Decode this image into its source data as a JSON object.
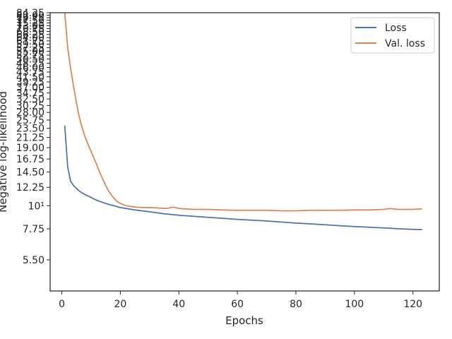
{
  "chart_data": {
    "type": "line",
    "title": "",
    "xlabel": "Epochs",
    "ylabel": "Negative log-likelihood",
    "yscale": "log",
    "xlim": [
      -4,
      129
    ],
    "ylim": [
      3.9,
      84.25
    ],
    "xticks": [
      0,
      20,
      40,
      60,
      80,
      100,
      120
    ],
    "yticks": [
      {
        "value": 5.5,
        "label": "5.50"
      },
      {
        "value": 7.75,
        "label": "7.75"
      },
      {
        "value": 10,
        "label": "10¹"
      },
      {
        "value": 12.25,
        "label": "12.25"
      },
      {
        "value": 14.5,
        "label": "14.50"
      },
      {
        "value": 16.75,
        "label": "16.75"
      },
      {
        "value": 19.0,
        "label": "19.00"
      },
      {
        "value": 21.25,
        "label": "21.25"
      },
      {
        "value": 23.5,
        "label": "23.50"
      },
      {
        "value": 25.75,
        "label": "25.75"
      },
      {
        "value": 28.0,
        "label": "28.00"
      },
      {
        "value": 30.25,
        "label": "30.25"
      },
      {
        "value": 32.5,
        "label": "32.50"
      },
      {
        "value": 34.75,
        "label": "34.75"
      },
      {
        "value": 37.0,
        "label": "37.00"
      },
      {
        "value": 39.25,
        "label": "39.25"
      },
      {
        "value": 41.5,
        "label": "41.50"
      },
      {
        "value": 43.75,
        "label": "43.75"
      },
      {
        "value": 46.0,
        "label": "46.00"
      },
      {
        "value": 48.25,
        "label": "48.25"
      },
      {
        "value": 50.5,
        "label": "50.50"
      },
      {
        "value": 52.75,
        "label": "52.75"
      },
      {
        "value": 55.0,
        "label": "55.00"
      },
      {
        "value": 57.25,
        "label": "57.25"
      },
      {
        "value": 59.5,
        "label": "59.50"
      },
      {
        "value": 61.75,
        "label": "61.75"
      },
      {
        "value": 64.0,
        "label": "64.00"
      },
      {
        "value": 66.25,
        "label": "66.25"
      },
      {
        "value": 68.5,
        "label": "68.50"
      },
      {
        "value": 70.75,
        "label": "70.75"
      },
      {
        "value": 73.0,
        "label": "73.00"
      },
      {
        "value": 75.25,
        "label": "75.25"
      },
      {
        "value": 77.5,
        "label": "77.50"
      },
      {
        "value": 79.75,
        "label": "79.75"
      },
      {
        "value": 82.0,
        "label": "82.00"
      },
      {
        "value": 84.25,
        "label": "84.25"
      }
    ],
    "grid": false,
    "legend_position": "top-right",
    "series": [
      {
        "name": "Loss",
        "color": "#4c72b0",
        "x": [
          1,
          2,
          3,
          4,
          5,
          6,
          7,
          8,
          10,
          12,
          15,
          20,
          25,
          30,
          35,
          40,
          45,
          50,
          55,
          60,
          65,
          70,
          75,
          80,
          85,
          90,
          95,
          100,
          105,
          110,
          115,
          120,
          123
        ],
        "y": [
          24.1,
          15.3,
          13.1,
          12.5,
          12.1,
          11.75,
          11.5,
          11.3,
          10.95,
          10.6,
          10.25,
          9.8,
          9.55,
          9.35,
          9.15,
          9.0,
          8.9,
          8.8,
          8.7,
          8.6,
          8.52,
          8.45,
          8.35,
          8.25,
          8.18,
          8.1,
          8.02,
          7.95,
          7.88,
          7.82,
          7.75,
          7.7,
          7.68
        ]
      },
      {
        "name": "Val. loss",
        "color": "#dd8452",
        "x": [
          1,
          2,
          3,
          4,
          5,
          6,
          7,
          8,
          9,
          10,
          11,
          12,
          13,
          14,
          15,
          16,
          17,
          18,
          19,
          20,
          22,
          25,
          28,
          30,
          33,
          36,
          38,
          40,
          45,
          50,
          55,
          60,
          65,
          70,
          75,
          80,
          85,
          90,
          95,
          100,
          105,
          110,
          112,
          115,
          120,
          123
        ],
        "y": [
          84.0,
          57.0,
          45.5,
          37.5,
          31.0,
          26.5,
          23.5,
          21.25,
          19.6,
          18.2,
          16.9,
          15.6,
          14.4,
          13.4,
          12.5,
          11.75,
          11.2,
          10.8,
          10.45,
          10.25,
          10.0,
          9.85,
          9.8,
          9.8,
          9.75,
          9.7,
          9.85,
          9.7,
          9.6,
          9.6,
          9.55,
          9.5,
          9.5,
          9.5,
          9.45,
          9.45,
          9.5,
          9.5,
          9.5,
          9.55,
          9.55,
          9.6,
          9.7,
          9.6,
          9.6,
          9.65
        ]
      }
    ]
  }
}
